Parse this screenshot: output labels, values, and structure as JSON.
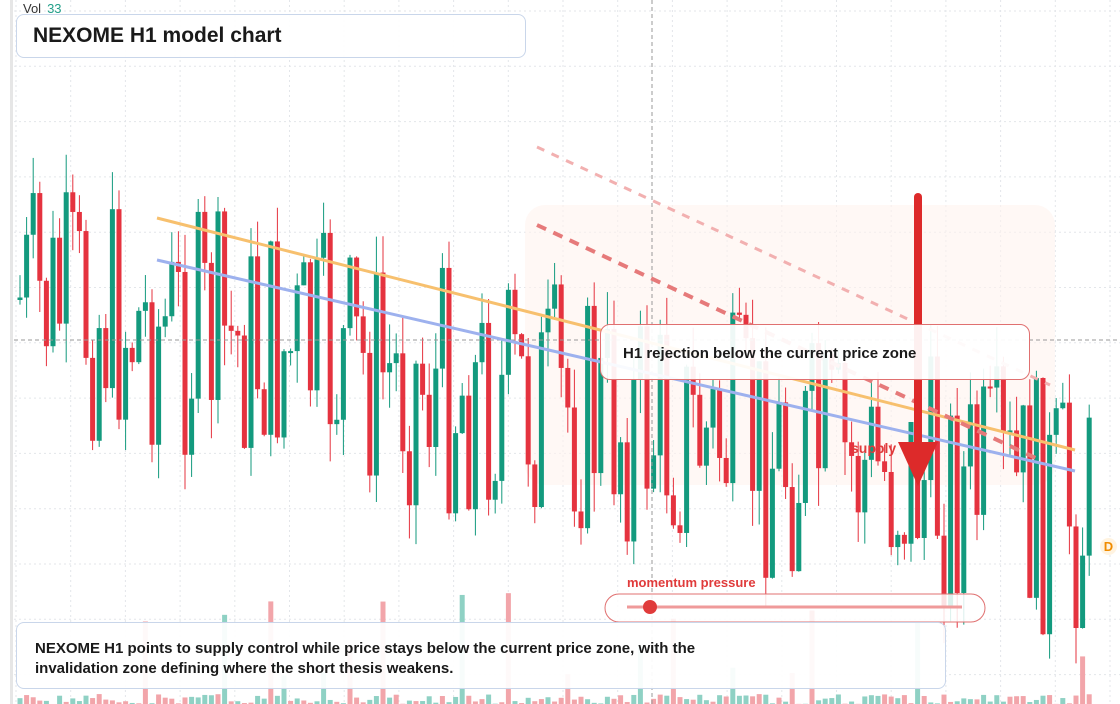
{
  "header": {
    "volume_label": "Vol",
    "volume_value": "33",
    "title": "NEXOME H1 model chart"
  },
  "annotations": {
    "rejection": "H1 rejection below the current price zone",
    "supply": "supply",
    "momentum": "momentum pressure",
    "marker": "D"
  },
  "summary": "NEXOME H1 points to supply control while price stays below the current price zone, with the invalidation zone defining where the short thesis weakens."
}
